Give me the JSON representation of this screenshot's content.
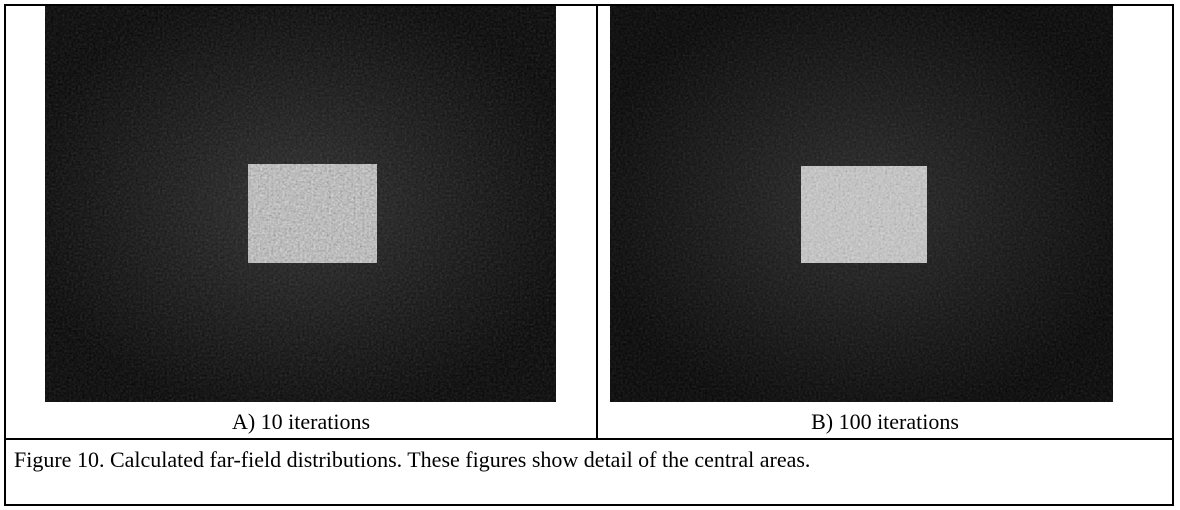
{
  "panels": [
    {
      "caption": "A) 10 iterations"
    },
    {
      "caption": "B) 100 iterations"
    }
  ],
  "figure_caption": "Figure 10.  Calculated far-field distributions. These figures show detail of the central areas."
}
